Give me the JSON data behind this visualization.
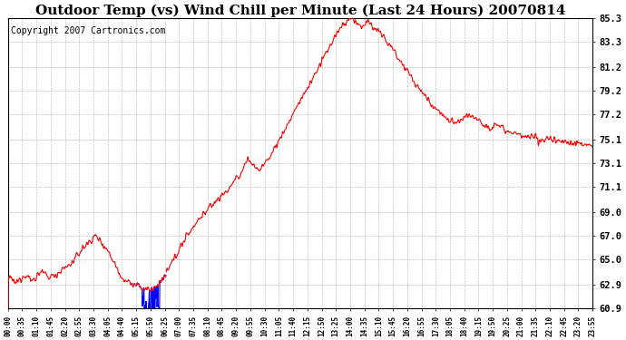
{
  "title": "Outdoor Temp (vs) Wind Chill per Minute (Last 24 Hours) 20070814",
  "copyright": "Copyright 2007 Cartronics.com",
  "title_fontsize": 11,
  "copyright_fontsize": 7,
  "background_color": "#ffffff",
  "plot_bg_color": "#ffffff",
  "grid_color": "#aaaaaa",
  "line_color_red": "#ff0000",
  "line_color_blue": "#0000ff",
  "ylim_min": 60.9,
  "ylim_max": 85.3,
  "ytick_labels": [
    "60.9",
    "62.9",
    "65.0",
    "67.0",
    "69.0",
    "71.1",
    "73.1",
    "75.1",
    "77.2",
    "79.2",
    "81.2",
    "83.3",
    "85.3"
  ],
  "ytick_values": [
    60.9,
    62.9,
    65.0,
    67.0,
    69.0,
    71.1,
    73.1,
    75.1,
    77.2,
    79.2,
    81.2,
    83.3,
    85.3
  ],
  "xtick_labels": [
    "00:00",
    "00:35",
    "01:10",
    "01:45",
    "02:20",
    "02:55",
    "03:30",
    "04:05",
    "04:40",
    "05:15",
    "05:50",
    "06:25",
    "07:00",
    "07:35",
    "08:10",
    "08:45",
    "09:20",
    "09:55",
    "10:30",
    "11:05",
    "11:40",
    "12:15",
    "12:50",
    "13:25",
    "14:00",
    "14:35",
    "15:10",
    "15:45",
    "16:20",
    "16:55",
    "17:30",
    "18:05",
    "18:40",
    "19:15",
    "19:50",
    "20:25",
    "21:00",
    "21:35",
    "22:10",
    "22:45",
    "23:20",
    "23:55"
  ],
  "num_minutes": 1440
}
